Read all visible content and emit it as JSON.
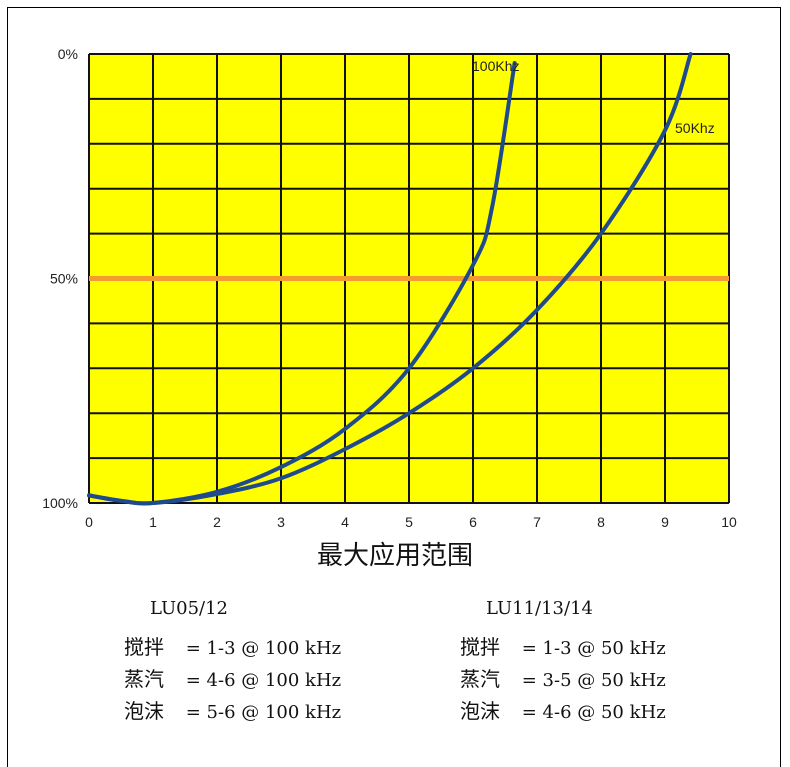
{
  "chart_data": {
    "type": "line",
    "xlabel": "最大应用范围",
    "ylabel": "",
    "xlim": [
      0,
      10
    ],
    "x_ticks": [
      "0",
      "1",
      "2",
      "3",
      "4",
      "5",
      "6",
      "7",
      "8",
      "9",
      "10"
    ],
    "y_ticks": [
      {
        "label": "0%",
        "value": 0
      },
      {
        "label": "50%",
        "value": 50
      },
      {
        "label": "100%",
        "value": 100
      }
    ],
    "ylim": [
      100,
      0
    ],
    "grid": true,
    "background_color": "#ffff00",
    "reference_line": {
      "value": 50,
      "color": "#f59a2e"
    },
    "series": [
      {
        "name": "100Khz",
        "color": "#1f4a8c",
        "points": [
          [
            0,
            98.3
          ],
          [
            0.5,
            99.5
          ],
          [
            1,
            100
          ],
          [
            2,
            97.5
          ],
          [
            3,
            92
          ],
          [
            4,
            83.5
          ],
          [
            5,
            70
          ],
          [
            6,
            47
          ],
          [
            6.3,
            34
          ],
          [
            6.65,
            2
          ]
        ]
      },
      {
        "name": "50Khz",
        "color": "#1f4a8c",
        "points": [
          [
            0,
            98.3
          ],
          [
            0.5,
            99.5
          ],
          [
            1,
            100
          ],
          [
            2,
            98
          ],
          [
            3,
            94.5
          ],
          [
            4,
            88
          ],
          [
            5,
            80
          ],
          [
            6,
            70
          ],
          [
            7,
            57
          ],
          [
            8,
            40
          ],
          [
            9,
            17
          ],
          [
            9.4,
            0
          ]
        ]
      }
    ]
  },
  "legend": {
    "left": {
      "title": "LU05/12",
      "rows": [
        {
          "name": "搅拌",
          "value": "= 1-3 @ 100 kHz"
        },
        {
          "name": "蒸汽",
          "value": "= 4-6 @ 100 kHz"
        },
        {
          "name": "泡沫",
          "value": "= 5-6 @ 100 kHz"
        }
      ]
    },
    "right": {
      "title": "LU11/13/14",
      "rows": [
        {
          "name": "搅拌",
          "value": "= 1-3 @ 50 kHz"
        },
        {
          "name": "蒸汽",
          "value": "= 3-5 @ 50 kHz"
        },
        {
          "name": "泡沫",
          "value": "= 4-6 @ 50 kHz"
        }
      ]
    }
  }
}
